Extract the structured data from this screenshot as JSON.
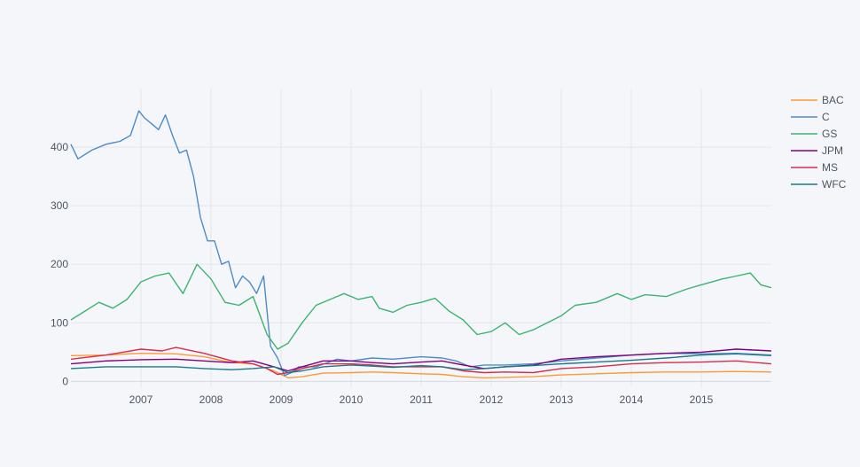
{
  "chart_data": {
    "type": "line",
    "title": "",
    "xlabel": "",
    "ylabel": "",
    "xlim": [
      2006.0,
      2016.0
    ],
    "ylim": [
      -10,
      500
    ],
    "grid": true,
    "legend_position": "top-right",
    "background": "#f5f6f9",
    "x_ticks": [
      2007,
      2008,
      2009,
      2010,
      2011,
      2012,
      2013,
      2014,
      2015
    ],
    "x_tick_labels": [
      "2007",
      "2008",
      "2009",
      "2010",
      "2011",
      "2012",
      "2013",
      "2014",
      "2015"
    ],
    "y_ticks": [
      0,
      100,
      200,
      300,
      400
    ],
    "y_tick_labels": [
      "0",
      "100",
      "200",
      "300",
      "400"
    ],
    "series": [
      {
        "name": "BAC",
        "color": "#ff9933",
        "x": [
          2006.0,
          2006.5,
          2007.0,
          2007.5,
          2007.9,
          2008.3,
          2008.6,
          2008.9,
          2009.1,
          2009.3,
          2009.6,
          2010.0,
          2010.3,
          2010.6,
          2011.0,
          2011.3,
          2011.6,
          2011.9,
          2012.2,
          2012.6,
          2013.0,
          2013.5,
          2014.0,
          2014.5,
          2015.0,
          2015.5,
          2016.0
        ],
        "values": [
          44,
          45,
          48,
          47,
          42,
          32,
          30,
          18,
          6,
          8,
          14,
          15,
          16,
          15,
          13,
          12,
          8,
          6,
          7,
          8,
          11,
          13,
          15,
          16,
          16,
          17,
          16
        ]
      },
      {
        "name": "C",
        "color": "#4c8cc8",
        "x": [
          2006.0,
          2006.1,
          2006.3,
          2006.5,
          2006.7,
          2006.85,
          2006.97,
          2007.05,
          2007.15,
          2007.25,
          2007.35,
          2007.45,
          2007.55,
          2007.65,
          2007.75,
          2007.85,
          2007.95,
          2008.05,
          2008.15,
          2008.25,
          2008.35,
          2008.45,
          2008.55,
          2008.65,
          2008.75,
          2008.85,
          2008.95,
          2009.05,
          2009.15,
          2009.25,
          2009.5,
          2009.8,
          2010.0,
          2010.3,
          2010.6,
          2011.0,
          2011.3,
          2011.5,
          2011.7,
          2011.9,
          2012.2,
          2012.6,
          2013.0,
          2013.5,
          2014.0,
          2014.5,
          2015.0,
          2015.5,
          2016.0
        ],
        "values": [
          405,
          380,
          395,
          405,
          410,
          420,
          462,
          450,
          440,
          430,
          455,
          420,
          390,
          395,
          350,
          280,
          240,
          240,
          200,
          205,
          160,
          180,
          170,
          150,
          180,
          60,
          40,
          10,
          15,
          25,
          25,
          38,
          35,
          40,
          38,
          42,
          40,
          35,
          25,
          28,
          28,
          30,
          35,
          40,
          45,
          48,
          47,
          48,
          45
        ]
      },
      {
        "name": "GS",
        "color": "#3cb371",
        "x": [
          2006.0,
          2006.2,
          2006.4,
          2006.6,
          2006.8,
          2007.0,
          2007.2,
          2007.4,
          2007.6,
          2007.8,
          2008.0,
          2008.2,
          2008.4,
          2008.6,
          2008.8,
          2008.95,
          2009.1,
          2009.3,
          2009.5,
          2009.7,
          2009.9,
          2010.1,
          2010.3,
          2010.4,
          2010.6,
          2010.8,
          2011.0,
          2011.2,
          2011.4,
          2011.6,
          2011.8,
          2012.0,
          2012.2,
          2012.4,
          2012.6,
          2012.8,
          2013.0,
          2013.2,
          2013.5,
          2013.8,
          2014.0,
          2014.2,
          2014.5,
          2014.8,
          2015.0,
          2015.3,
          2015.5,
          2015.7,
          2015.85,
          2016.0
        ],
        "values": [
          105,
          120,
          135,
          125,
          140,
          170,
          180,
          185,
          150,
          200,
          175,
          135,
          130,
          145,
          80,
          55,
          65,
          100,
          130,
          140,
          150,
          140,
          145,
          125,
          118,
          130,
          135,
          142,
          120,
          105,
          80,
          85,
          100,
          80,
          88,
          100,
          112,
          130,
          135,
          150,
          140,
          148,
          145,
          158,
          165,
          175,
          180,
          185,
          165,
          160
        ]
      },
      {
        "name": "JPM",
        "color": "#800080",
        "x": [
          2006.0,
          2006.5,
          2007.0,
          2007.5,
          2007.9,
          2008.3,
          2008.6,
          2008.9,
          2009.1,
          2009.3,
          2009.6,
          2010.0,
          2010.3,
          2010.6,
          2011.0,
          2011.3,
          2011.6,
          2011.9,
          2012.2,
          2012.6,
          2013.0,
          2013.5,
          2014.0,
          2014.5,
          2015.0,
          2015.5,
          2016.0
        ],
        "values": [
          30,
          35,
          37,
          38,
          35,
          32,
          35,
          25,
          18,
          25,
          35,
          35,
          32,
          30,
          33,
          35,
          28,
          22,
          25,
          28,
          38,
          42,
          45,
          48,
          50,
          55,
          52
        ]
      },
      {
        "name": "MS",
        "color": "#d62d4f",
        "x": [
          2006.0,
          2006.5,
          2007.0,
          2007.3,
          2007.5,
          2007.9,
          2008.3,
          2008.6,
          2008.8,
          2008.95,
          2009.1,
          2009.3,
          2009.6,
          2010.0,
          2010.3,
          2010.6,
          2011.0,
          2011.3,
          2011.6,
          2011.9,
          2012.2,
          2012.6,
          2013.0,
          2013.5,
          2014.0,
          2014.5,
          2015.0,
          2015.5,
          2016.0
        ],
        "values": [
          38,
          45,
          55,
          52,
          58,
          48,
          35,
          30,
          22,
          12,
          15,
          22,
          30,
          30,
          28,
          25,
          25,
          25,
          18,
          15,
          16,
          15,
          22,
          25,
          30,
          32,
          33,
          35,
          30
        ]
      },
      {
        "name": "WFC",
        "color": "#1a7a8a",
        "x": [
          2006.0,
          2006.5,
          2007.0,
          2007.5,
          2007.9,
          2008.3,
          2008.6,
          2008.9,
          2009.1,
          2009.3,
          2009.6,
          2010.0,
          2010.3,
          2010.6,
          2011.0,
          2011.3,
          2011.6,
          2011.9,
          2012.2,
          2012.6,
          2013.0,
          2013.5,
          2014.0,
          2014.5,
          2015.0,
          2015.5,
          2016.0
        ],
        "values": [
          22,
          25,
          25,
          25,
          22,
          20,
          22,
          25,
          15,
          18,
          25,
          28,
          26,
          24,
          27,
          25,
          20,
          22,
          25,
          27,
          30,
          33,
          36,
          40,
          45,
          47,
          44
        ]
      }
    ]
  }
}
